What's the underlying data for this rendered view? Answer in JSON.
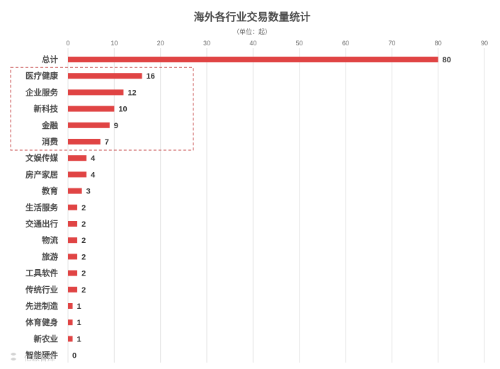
{
  "chart_data": {
    "type": "bar",
    "orientation": "horizontal",
    "title": "海外各行业交易数量统计",
    "subtitle": "（单位：起）",
    "categories": [
      "总计",
      "医疗健康",
      "企业服务",
      "新科技",
      "金融",
      "消费",
      "文娱传媒",
      "房产家居",
      "教育",
      "生活服务",
      "交通出行",
      "物流",
      "旅游",
      "工具软件",
      "传统行业",
      "先进制造",
      "体育健身",
      "新农业",
      "智能硬件"
    ],
    "values": [
      80,
      16,
      12,
      10,
      9,
      7,
      4,
      4,
      3,
      2,
      2,
      2,
      2,
      2,
      2,
      1,
      1,
      1,
      0
    ],
    "xlim": [
      0,
      90
    ],
    "xticks": [
      0,
      10,
      20,
      30,
      40,
      50,
      60,
      70,
      80,
      90
    ],
    "xaxis_position": "top",
    "grid": true,
    "legend": "none",
    "bar_color": "#e04444",
    "highlighted_categories": [
      "医疗健康",
      "企业服务",
      "新科技",
      "金融",
      "消费"
    ],
    "highlight_color": "#c74a4a"
  },
  "watermark": {
    "text": "亿欧智库"
  }
}
